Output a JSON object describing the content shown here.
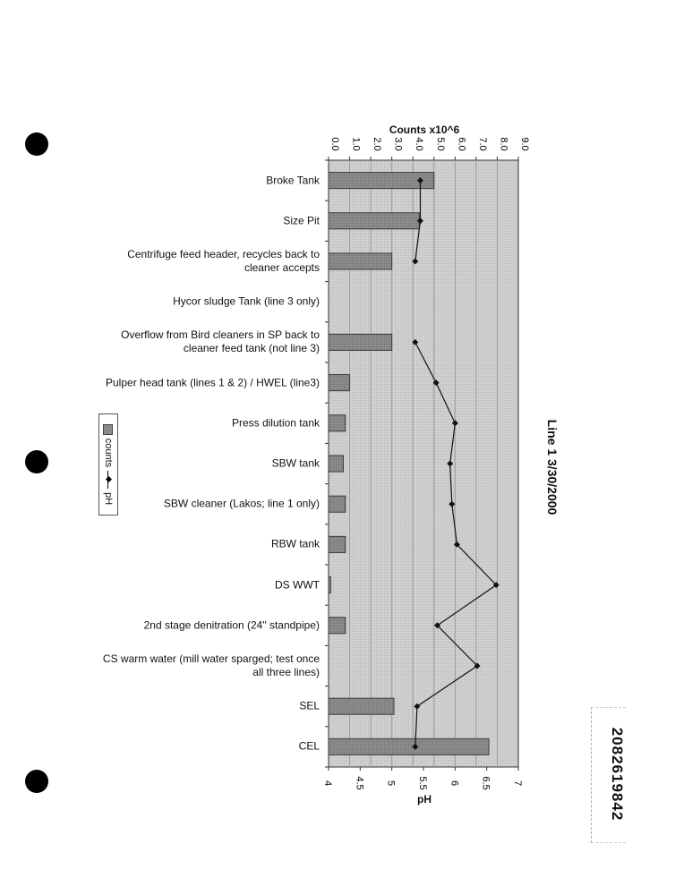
{
  "chart_data": {
    "type": "bar",
    "title": "Line 1 3/30/2000",
    "categories": [
      "Broke Tank",
      "Size Pit",
      "Centrifuge feed header, recycles back to cleaner accepts",
      "Hycor sludge Tank (line 3 only)",
      "Overflow from Bird cleaners in SP back to cleaner feed tank (not line 3)",
      "Pulper head tank (lines 1 & 2)  / HWEL (line3)",
      "Press dilution tank",
      "SBW tank",
      "SBW cleaner (Lakos; line 1 only)",
      "RBW tank",
      "DS WWT",
      "2nd stage denitration (24\" standpipe)",
      "CS warm water (mill water sparged; test once all three lines)",
      "SEL",
      "CEL"
    ],
    "series": [
      {
        "name": "counts",
        "type": "bar",
        "axis": "Counts x10^6",
        "values": [
          5.0,
          4.3,
          3.0,
          0.0,
          3.0,
          1.0,
          0.8,
          0.7,
          0.8,
          0.8,
          0.1,
          0.8,
          0.0,
          3.1,
          7.6
        ]
      },
      {
        "name": "pH",
        "type": "line",
        "axis": "pH",
        "values": [
          5.45,
          5.45,
          5.37,
          null,
          5.37,
          5.7,
          6.0,
          5.92,
          5.95,
          6.03,
          6.65,
          5.72,
          6.35,
          5.4,
          5.37
        ]
      }
    ],
    "counts_axis": {
      "label": "Counts x10^6",
      "range": [
        0,
        9
      ],
      "ticks": [
        "0.0",
        "1.0",
        "2.0",
        "3.0",
        "4.0",
        "5.0",
        "6.0",
        "7.0",
        "8.0",
        "9.0"
      ]
    },
    "ph_axis": {
      "label": "pH",
      "range": [
        4,
        7
      ],
      "ticks": [
        "4",
        "4.5",
        "5",
        "5.5",
        "6",
        "6.5",
        "7"
      ]
    },
    "legend": {
      "placement": "left",
      "entries": [
        "counts",
        "pH"
      ]
    },
    "grid": true
  },
  "stamp": {
    "text": "2082619842"
  },
  "colors": {
    "plot_bg": "#cfcfcf",
    "bar_fill": "#8a8a8a",
    "bar_stroke": "#3a3a3a",
    "line": "#111111",
    "grid": "#9a9a9a"
  }
}
